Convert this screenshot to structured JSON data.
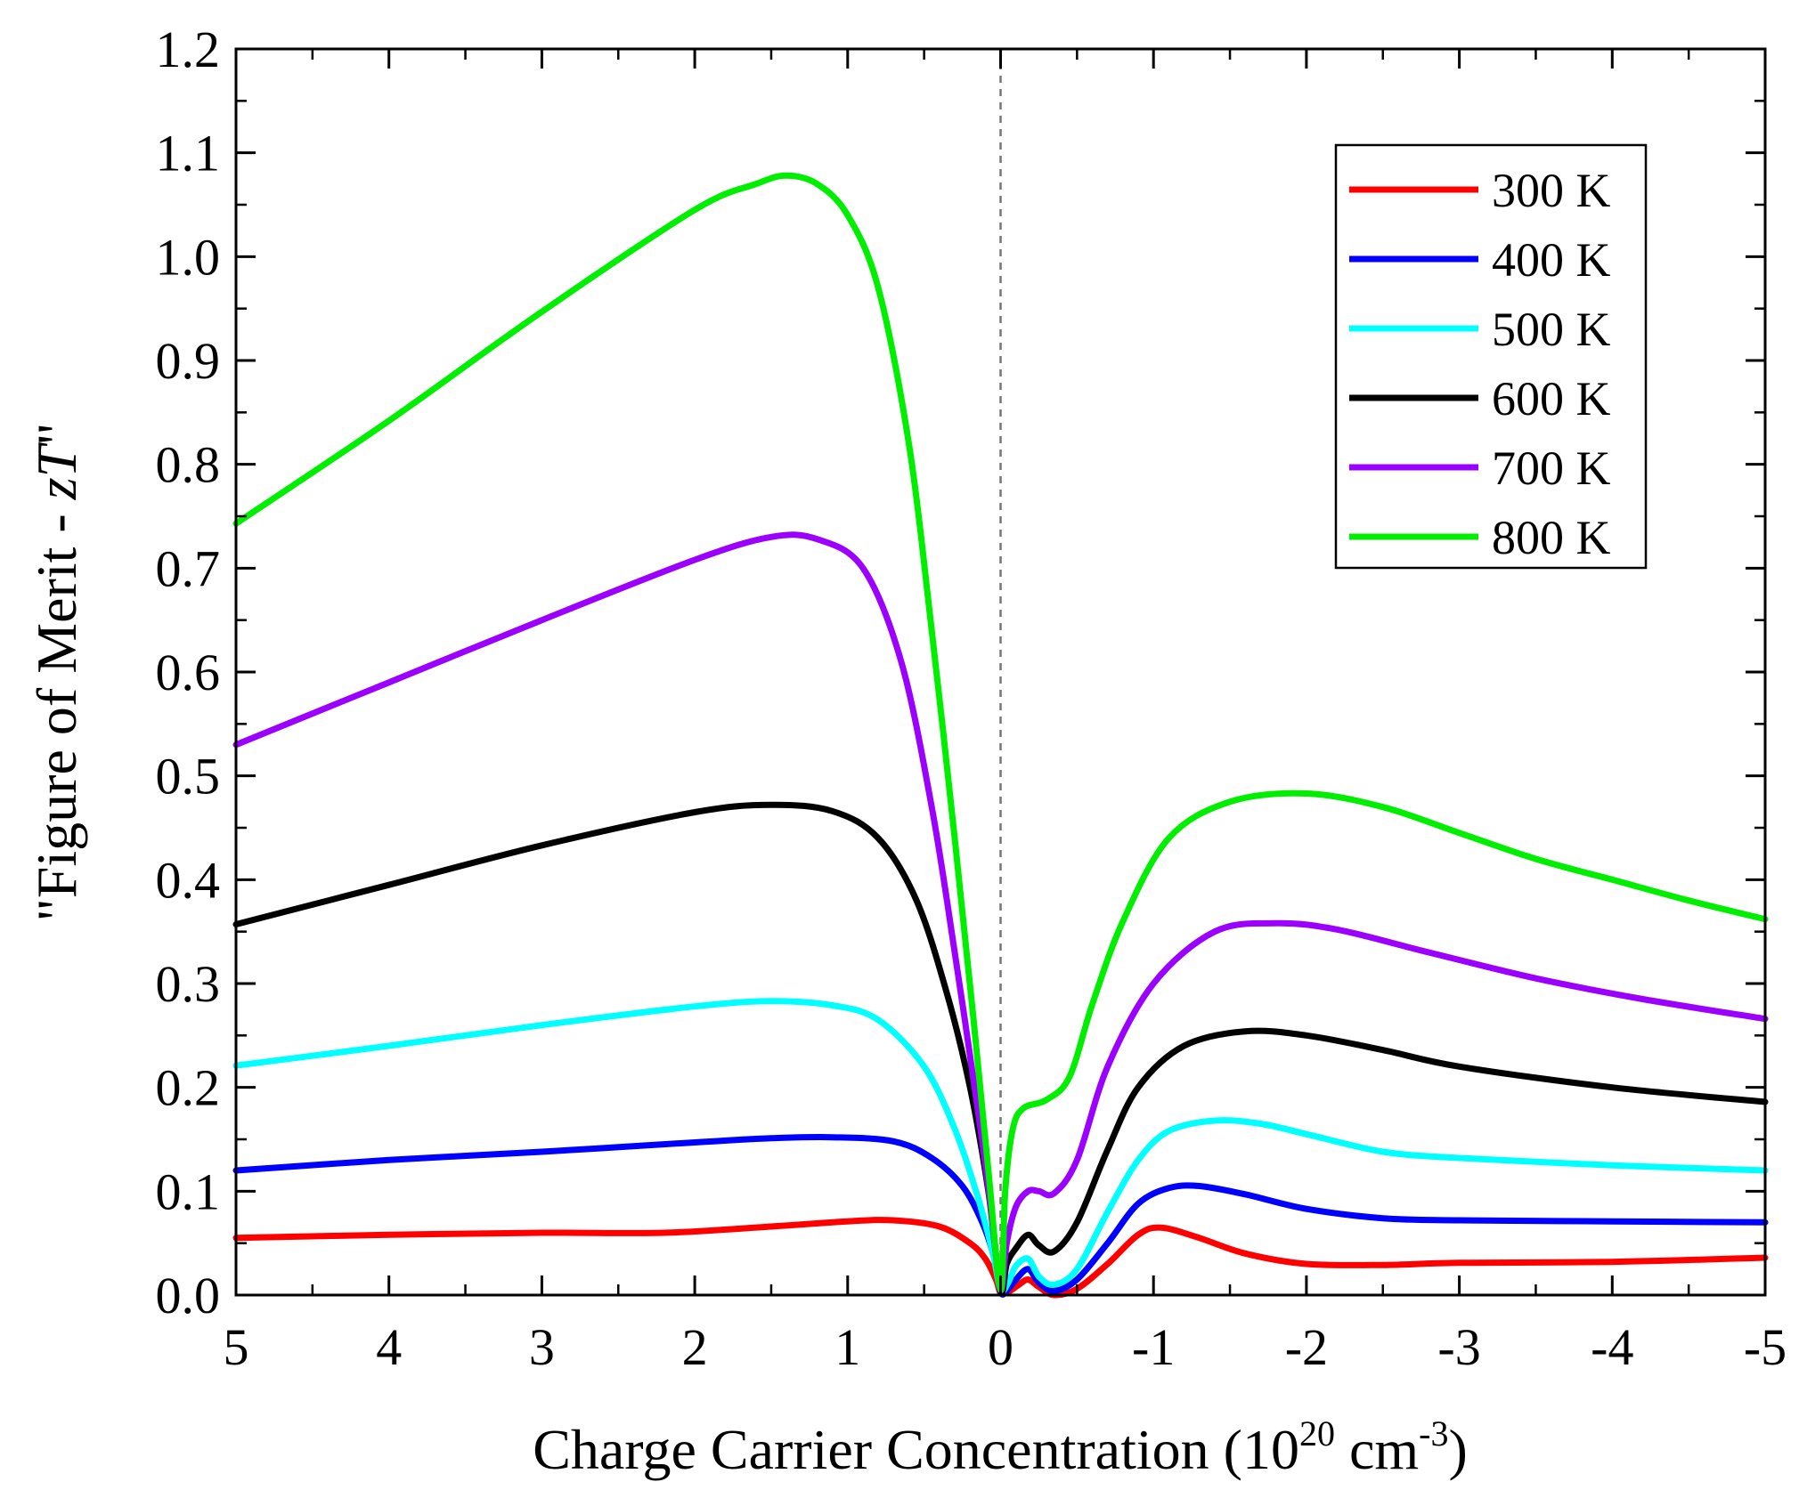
{
  "chart_data": {
    "type": "line",
    "title": "",
    "xlabel": "Charge Carrier Concentration (10",
    "xlabel_sup1": "20",
    "xlabel_mid": " cm",
    "xlabel_sup2": "-3",
    "xlabel_end": ")",
    "ylabel": "\"Figure of Merit - ",
    "ylabel_italic": "zT",
    "ylabel_end": "\"",
    "xlim": [
      5,
      -5
    ],
    "ylim": [
      0,
      1.2
    ],
    "xticks": [
      5,
      4,
      3,
      2,
      1,
      0,
      -1,
      -2,
      -3,
      -4,
      -5
    ],
    "xtick_labels": [
      "5",
      "4",
      "3",
      "2",
      "1",
      "0",
      "-1",
      "-2",
      "-3",
      "-4",
      "-5"
    ],
    "yticks": [
      0,
      0.1,
      0.2,
      0.3,
      0.4,
      0.5,
      0.6,
      0.7,
      0.8,
      0.9,
      1.0,
      1.1,
      1.2
    ],
    "ytick_labels": [
      "0.0",
      "0.1",
      "0.2",
      "0.3",
      "0.4",
      "0.5",
      "0.6",
      "0.7",
      "0.8",
      "0.9",
      "1.0",
      "1.1",
      "1.2"
    ],
    "reference_line": {
      "x": 0,
      "style": "dashed"
    },
    "legend_position": "top-right",
    "series": [
      {
        "name": "300 K",
        "color": "#ff0000",
        "points": [
          [
            5,
            0.055
          ],
          [
            4,
            0.058
          ],
          [
            3,
            0.06
          ],
          [
            2.2,
            0.06
          ],
          [
            1.5,
            0.066
          ],
          [
            1,
            0.071
          ],
          [
            0.7,
            0.072
          ],
          [
            0.4,
            0.066
          ],
          [
            0.2,
            0.05
          ],
          [
            0.1,
            0.035
          ],
          [
            0.03,
            0.015
          ],
          [
            0,
            0.002
          ],
          [
            -0.05,
            0.003
          ],
          [
            -0.12,
            0.01
          ],
          [
            -0.18,
            0.015
          ],
          [
            -0.25,
            0.008
          ],
          [
            -0.35,
            0.0
          ],
          [
            -0.5,
            0.006
          ],
          [
            -0.7,
            0.03
          ],
          [
            -0.9,
            0.058
          ],
          [
            -1.05,
            0.065
          ],
          [
            -1.3,
            0.055
          ],
          [
            -1.6,
            0.04
          ],
          [
            -2.0,
            0.03
          ],
          [
            -2.5,
            0.029
          ],
          [
            -3,
            0.031
          ],
          [
            -4,
            0.032
          ],
          [
            -5,
            0.036
          ]
        ]
      },
      {
        "name": "400 K",
        "color": "#0000ff",
        "points": [
          [
            5,
            0.12
          ],
          [
            4,
            0.13
          ],
          [
            3,
            0.138
          ],
          [
            2,
            0.147
          ],
          [
            1.5,
            0.151
          ],
          [
            1.1,
            0.152
          ],
          [
            0.7,
            0.148
          ],
          [
            0.45,
            0.132
          ],
          [
            0.25,
            0.105
          ],
          [
            0.12,
            0.07
          ],
          [
            0.04,
            0.035
          ],
          [
            0,
            0.003
          ],
          [
            -0.04,
            0.004
          ],
          [
            -0.1,
            0.015
          ],
          [
            -0.18,
            0.025
          ],
          [
            -0.25,
            0.012
          ],
          [
            -0.35,
            0.004
          ],
          [
            -0.5,
            0.015
          ],
          [
            -0.7,
            0.05
          ],
          [
            -0.9,
            0.088
          ],
          [
            -1.1,
            0.103
          ],
          [
            -1.3,
            0.105
          ],
          [
            -1.6,
            0.097
          ],
          [
            -2,
            0.083
          ],
          [
            -2.5,
            0.074
          ],
          [
            -3,
            0.072
          ],
          [
            -4,
            0.071
          ],
          [
            -5,
            0.07
          ]
        ]
      },
      {
        "name": "500 K",
        "color": "#00ffff",
        "points": [
          [
            5,
            0.221
          ],
          [
            4,
            0.24
          ],
          [
            3,
            0.26
          ],
          [
            2,
            0.278
          ],
          [
            1.5,
            0.283
          ],
          [
            1.1,
            0.279
          ],
          [
            0.8,
            0.265
          ],
          [
            0.5,
            0.22
          ],
          [
            0.3,
            0.16
          ],
          [
            0.15,
            0.095
          ],
          [
            0.05,
            0.04
          ],
          [
            0,
            0.005
          ],
          [
            -0.05,
            0.012
          ],
          [
            -0.1,
            0.028
          ],
          [
            -0.18,
            0.035
          ],
          [
            -0.25,
            0.018
          ],
          [
            -0.35,
            0.01
          ],
          [
            -0.5,
            0.025
          ],
          [
            -0.7,
            0.08
          ],
          [
            -0.9,
            0.13
          ],
          [
            -1.1,
            0.158
          ],
          [
            -1.4,
            0.168
          ],
          [
            -1.7,
            0.165
          ],
          [
            -2,
            0.155
          ],
          [
            -2.5,
            0.138
          ],
          [
            -3,
            0.132
          ],
          [
            -4,
            0.125
          ],
          [
            -5,
            0.12
          ]
        ]
      },
      {
        "name": "600 K",
        "color": "#000000",
        "points": [
          [
            5,
            0.357
          ],
          [
            4,
            0.395
          ],
          [
            3,
            0.433
          ],
          [
            2,
            0.465
          ],
          [
            1.5,
            0.472
          ],
          [
            1.1,
            0.466
          ],
          [
            0.8,
            0.44
          ],
          [
            0.55,
            0.38
          ],
          [
            0.35,
            0.29
          ],
          [
            0.2,
            0.2
          ],
          [
            0.08,
            0.1
          ],
          [
            0,
            0.005
          ],
          [
            -0.04,
            0.03
          ],
          [
            -0.1,
            0.045
          ],
          [
            -0.18,
            0.058
          ],
          [
            -0.25,
            0.048
          ],
          [
            -0.35,
            0.042
          ],
          [
            -0.5,
            0.07
          ],
          [
            -0.7,
            0.14
          ],
          [
            -0.9,
            0.2
          ],
          [
            -1.2,
            0.24
          ],
          [
            -1.6,
            0.254
          ],
          [
            -2,
            0.25
          ],
          [
            -2.5,
            0.236
          ],
          [
            -3,
            0.22
          ],
          [
            -4,
            0.2
          ],
          [
            -5,
            0.186
          ]
        ]
      },
      {
        "name": "700 K",
        "color": "#9b00ff",
        "points": [
          [
            5,
            0.53
          ],
          [
            4,
            0.59
          ],
          [
            3,
            0.65
          ],
          [
            2,
            0.708
          ],
          [
            1.5,
            0.73
          ],
          [
            1.2,
            0.728
          ],
          [
            0.9,
            0.7
          ],
          [
            0.65,
            0.61
          ],
          [
            0.45,
            0.47
          ],
          [
            0.3,
            0.33
          ],
          [
            0.15,
            0.18
          ],
          [
            0.06,
            0.08
          ],
          [
            0,
            0.005
          ],
          [
            -0.04,
            0.05
          ],
          [
            -0.1,
            0.085
          ],
          [
            -0.18,
            0.1
          ],
          [
            -0.25,
            0.1
          ],
          [
            -0.35,
            0.098
          ],
          [
            -0.5,
            0.13
          ],
          [
            -0.7,
            0.22
          ],
          [
            -1.0,
            0.3
          ],
          [
            -1.4,
            0.35
          ],
          [
            -1.8,
            0.358
          ],
          [
            -2.2,
            0.352
          ],
          [
            -2.8,
            0.33
          ],
          [
            -3.5,
            0.305
          ],
          [
            -4.2,
            0.285
          ],
          [
            -5,
            0.266
          ]
        ]
      },
      {
        "name": "800 K",
        "color": "#00ee00",
        "points": [
          [
            5,
            0.743
          ],
          [
            4,
            0.842
          ],
          [
            3,
            0.947
          ],
          [
            2,
            1.045
          ],
          [
            1.6,
            1.07
          ],
          [
            1.4,
            1.078
          ],
          [
            1.2,
            1.07
          ],
          [
            1.0,
            1.04
          ],
          [
            0.8,
            0.97
          ],
          [
            0.6,
            0.82
          ],
          [
            0.45,
            0.64
          ],
          [
            0.3,
            0.44
          ],
          [
            0.18,
            0.27
          ],
          [
            0.08,
            0.12
          ],
          [
            0,
            0.005
          ],
          [
            -0.03,
            0.1
          ],
          [
            -0.08,
            0.16
          ],
          [
            -0.15,
            0.18
          ],
          [
            -0.3,
            0.188
          ],
          [
            -0.45,
            0.21
          ],
          [
            -0.6,
            0.28
          ],
          [
            -0.8,
            0.36
          ],
          [
            -1.1,
            0.44
          ],
          [
            -1.5,
            0.475
          ],
          [
            -2,
            0.483
          ],
          [
            -2.5,
            0.47
          ],
          [
            -3,
            0.445
          ],
          [
            -3.5,
            0.42
          ],
          [
            -4,
            0.4
          ],
          [
            -4.5,
            0.38
          ],
          [
            -5,
            0.362
          ]
        ]
      }
    ]
  }
}
